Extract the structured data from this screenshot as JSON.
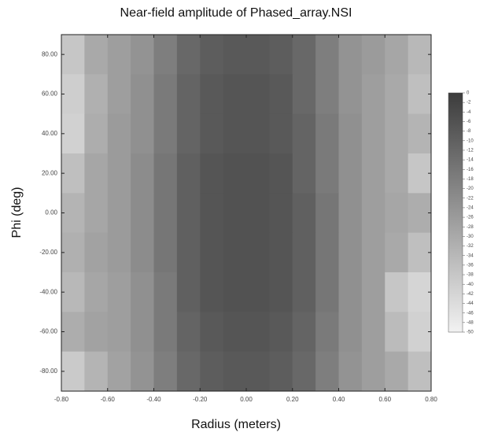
{
  "chart_data": {
    "type": "heatmap",
    "title": "Near-field amplitude of Phased_array.NSI",
    "x_label": "Radius (meters)",
    "y_label": "Phi (deg)",
    "x": [
      -0.75,
      -0.65,
      -0.55,
      -0.45,
      -0.35,
      -0.25,
      -0.15,
      -0.05,
      0.05,
      0.15,
      0.25,
      0.35,
      0.45,
      0.55,
      0.65,
      0.75
    ],
    "y": [
      80,
      60,
      40,
      20,
      0,
      -20,
      -40,
      -60,
      -80
    ],
    "z": [
      [
        -38,
        -30,
        -27,
        -24,
        -18,
        -12,
        -9,
        -8,
        -8,
        -9,
        -12,
        -18,
        -24,
        -26,
        -29,
        -34
      ],
      [
        -40,
        -32,
        -27,
        -23,
        -17,
        -11,
        -8,
        -7,
        -7,
        -8,
        -12,
        -18,
        -24,
        -27,
        -30,
        -36
      ],
      [
        -41,
        -31,
        -26,
        -23,
        -17,
        -11,
        -8,
        -7,
        -7,
        -8,
        -11,
        -17,
        -23,
        -27,
        -30,
        -33
      ],
      [
        -36,
        -29,
        -26,
        -22,
        -16,
        -10,
        -7,
        -6,
        -6,
        -7,
        -11,
        -17,
        -23,
        -27,
        -30,
        -38
      ],
      [
        -33,
        -29,
        -26,
        -22,
        -16,
        -10,
        -7,
        -6,
        -6,
        -7,
        -10,
        -16,
        -23,
        -27,
        -29,
        -31
      ],
      [
        -32,
        -28,
        -26,
        -22,
        -16,
        -10,
        -7,
        -6,
        -6,
        -7,
        -10,
        -16,
        -23,
        -27,
        -30,
        -36
      ],
      [
        -34,
        -29,
        -27,
        -23,
        -17,
        -10,
        -7,
        -6,
        -6,
        -7,
        -10,
        -16,
        -23,
        -27,
        -38,
        -42
      ],
      [
        -31,
        -28,
        -27,
        -23,
        -17,
        -11,
        -8,
        -7,
        -7,
        -8,
        -11,
        -17,
        -23,
        -27,
        -35,
        -41
      ],
      [
        -39,
        -33,
        -28,
        -24,
        -18,
        -12,
        -9,
        -8,
        -8,
        -9,
        -12,
        -18,
        -24,
        -27,
        -30,
        -36
      ]
    ],
    "xlim": [
      -0.8,
      0.8
    ],
    "xticks": [
      {
        "value": -0.8,
        "label": "-0.80"
      },
      {
        "value": -0.6,
        "label": "-0.60"
      },
      {
        "value": -0.4,
        "label": "-0.40"
      },
      {
        "value": -0.2,
        "label": "-0.20"
      },
      {
        "value": 0,
        "label": "0.00"
      },
      {
        "value": 0.2,
        "label": "0.20"
      },
      {
        "value": 0.4,
        "label": "0.40"
      },
      {
        "value": 0.6,
        "label": "0.60"
      },
      {
        "value": 0.8,
        "label": "0.80"
      }
    ],
    "ylim": [
      -90,
      90
    ],
    "yticks": [
      {
        "value": 80,
        "label": "80.00"
      },
      {
        "value": 60,
        "label": "60.00"
      },
      {
        "value": 40,
        "label": "40.00"
      },
      {
        "value": 20,
        "label": "20.00"
      },
      {
        "value": 0,
        "label": "0.00"
      },
      {
        "value": -20,
        "label": "-20.00"
      },
      {
        "value": -40,
        "label": "-40.00"
      },
      {
        "value": -60,
        "label": "-60.00"
      },
      {
        "value": -80,
        "label": "-80.00"
      }
    ],
    "clim": [
      -50,
      0
    ],
    "cticks": [
      0,
      -2,
      -4,
      -6,
      -8,
      -10,
      -12,
      -14,
      -16,
      -18,
      -20,
      -22,
      -24,
      -26,
      -28,
      -30,
      -32,
      -34,
      -36,
      -38,
      -40,
      -42,
      -44,
      -46,
      -48,
      -50
    ],
    "colors": [
      "#f2f2f2",
      "#3c3c3c"
    ]
  }
}
